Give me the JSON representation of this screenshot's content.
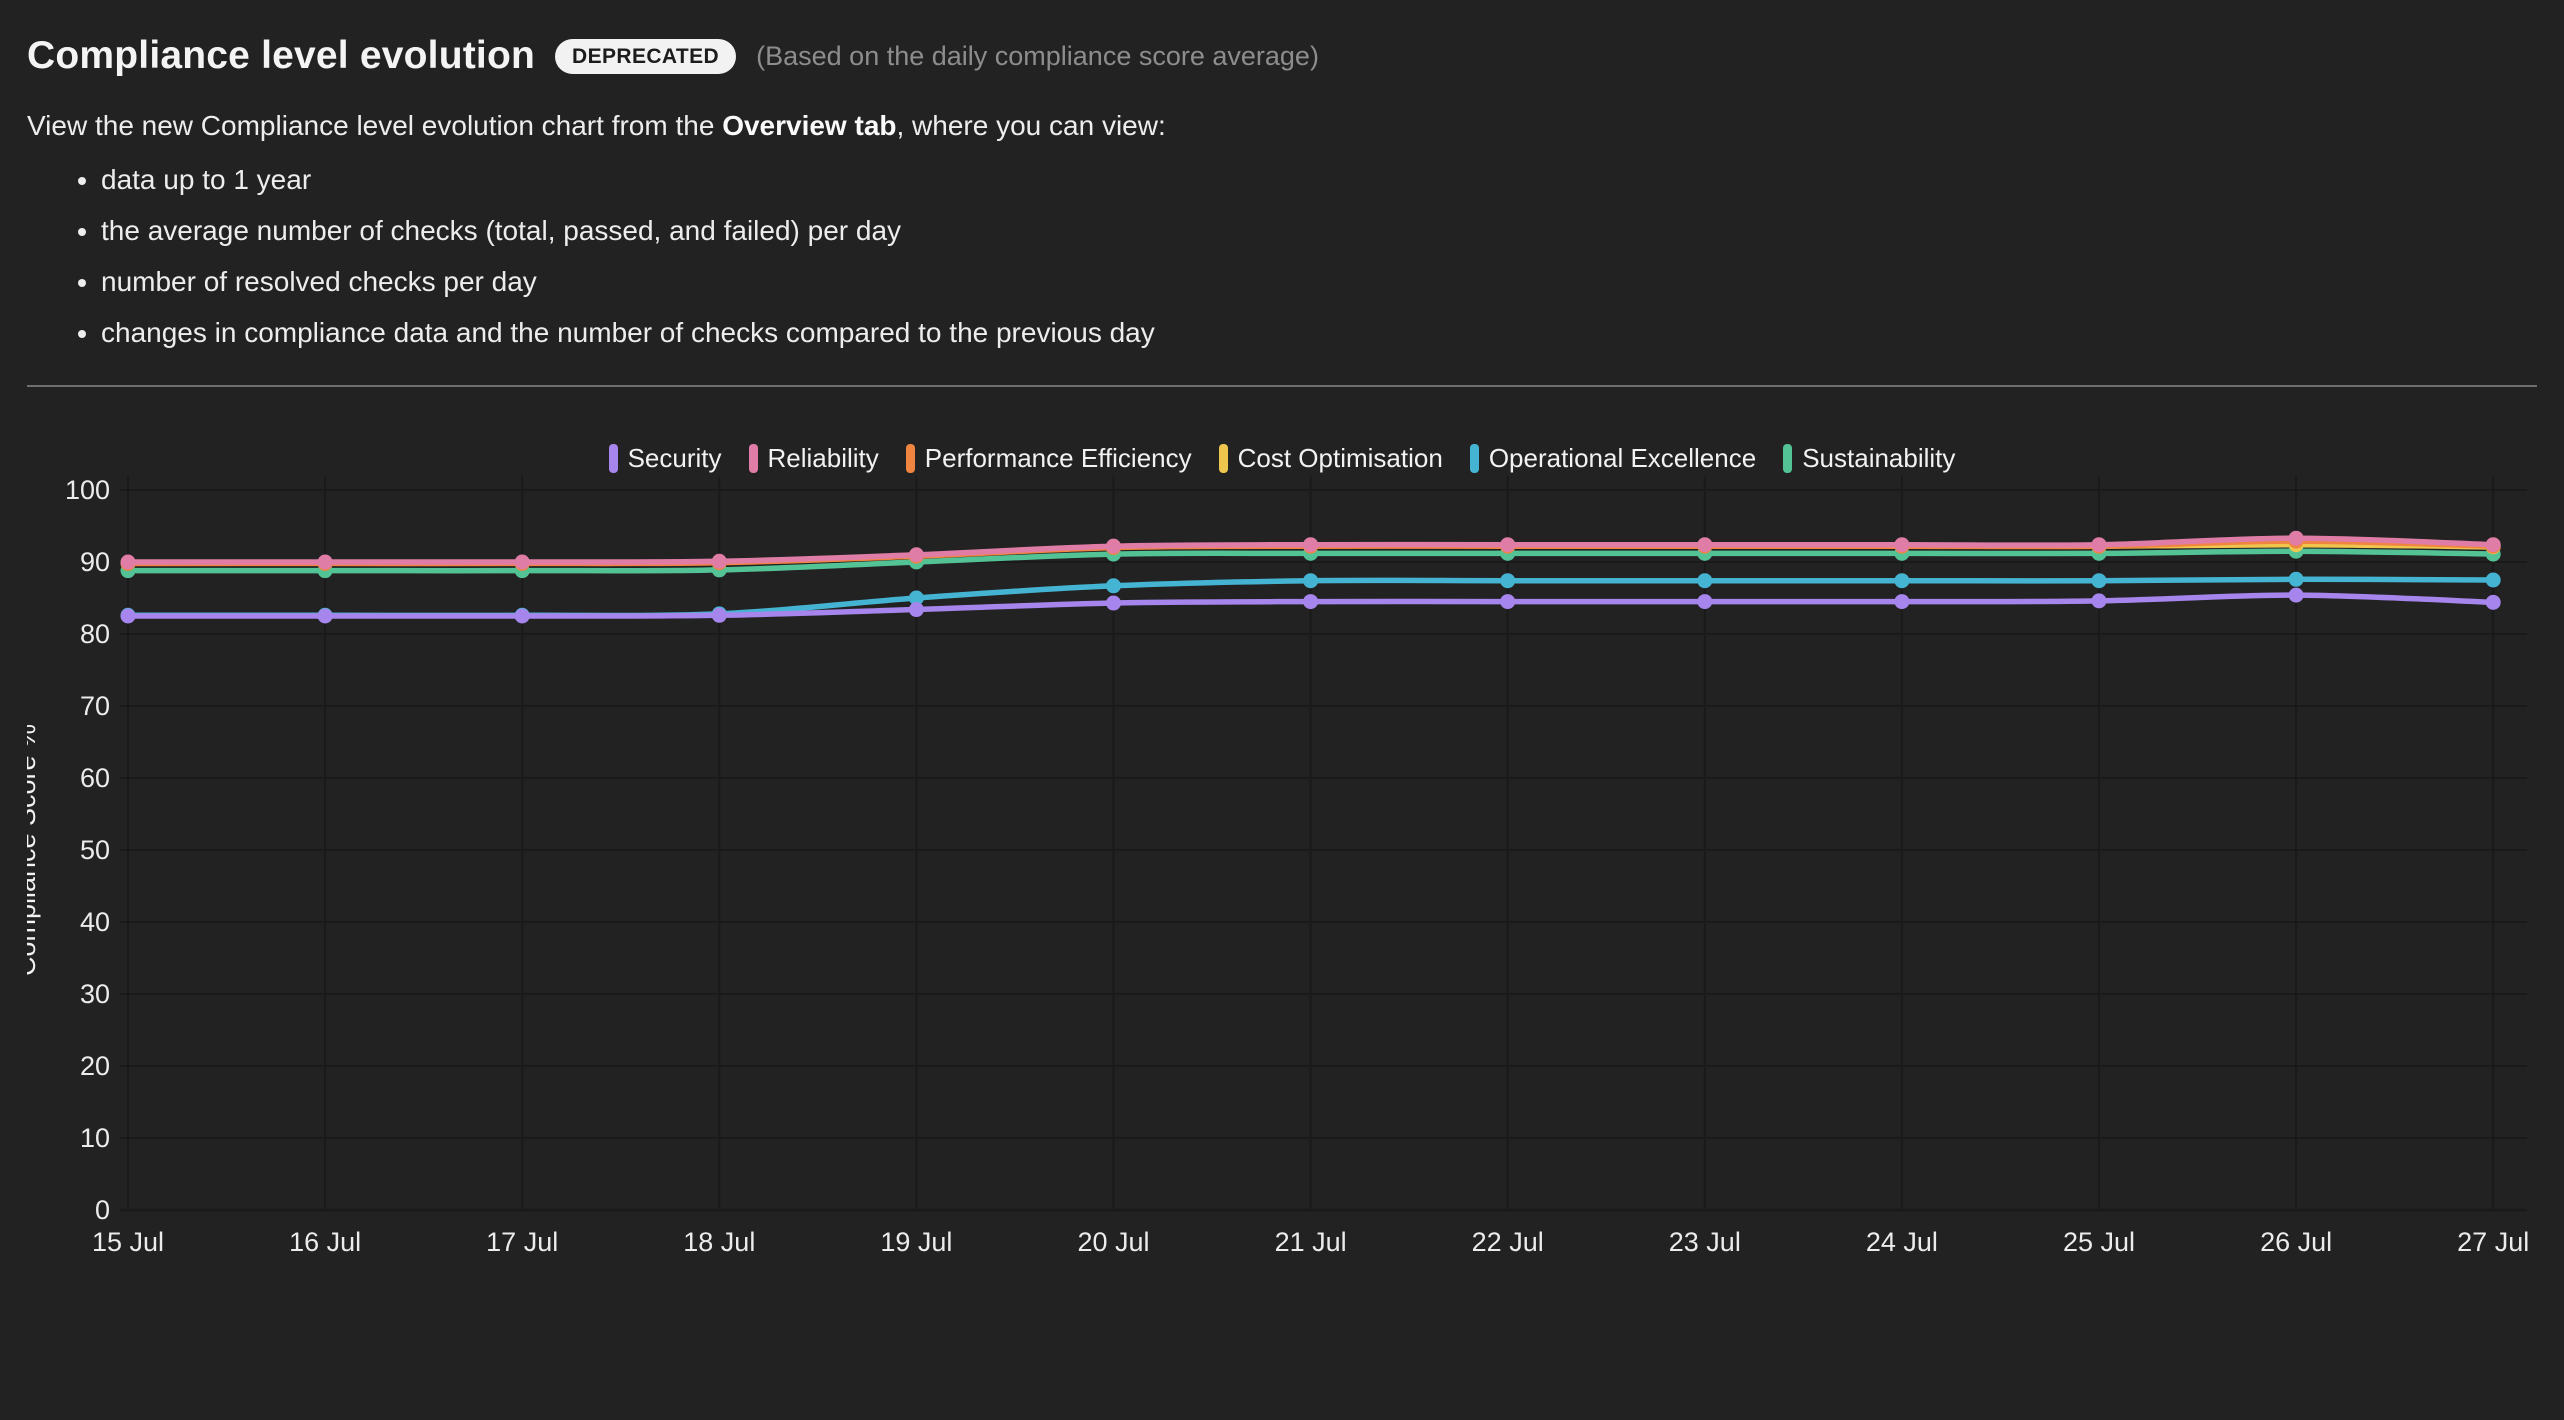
{
  "header": {
    "title": "Compliance level evolution",
    "badge": "DEPRECATED",
    "subtitle": "(Based on the daily compliance score average)",
    "intro_prefix": "View the new Compliance level evolution chart from the ",
    "intro_bold": "Overview tab",
    "intro_suffix": ", where you can view:",
    "bullets": [
      "data up to 1 year",
      "the average number of checks (total, passed, and failed) per day",
      "number of resolved checks per day",
      "changes in compliance data and the number of checks compared to the previous day"
    ]
  },
  "chart_data": {
    "type": "line",
    "title": "",
    "xlabel": "",
    "ylabel": "Compliance Score %",
    "ylim": [
      0,
      100
    ],
    "y_ticks": [
      0,
      10,
      20,
      30,
      40,
      50,
      60,
      70,
      80,
      90,
      100
    ],
    "grid": true,
    "legend_position": "top",
    "point_style": "circle",
    "categories": [
      "15 Jul",
      "16 Jul",
      "17 Jul",
      "18 Jul",
      "19 Jul",
      "20 Jul",
      "21 Jul",
      "22 Jul",
      "23 Jul",
      "24 Jul",
      "25 Jul",
      "26 Jul",
      "27 Jul"
    ],
    "series": [
      {
        "name": "Security",
        "color": "#a685ec",
        "values": [
          82.5,
          82.5,
          82.5,
          82.6,
          83.4,
          84.3,
          84.5,
          84.5,
          84.5,
          84.5,
          84.6,
          85.4,
          84.4
        ]
      },
      {
        "name": "Reliability",
        "color": "#e07da6",
        "values": [
          90.0,
          90.0,
          90.0,
          90.1,
          91.0,
          92.2,
          92.4,
          92.4,
          92.4,
          92.4,
          92.4,
          93.3,
          92.4
        ]
      },
      {
        "name": "Performance Efficiency",
        "color": "#ef8540",
        "values": [
          89.8,
          89.8,
          89.8,
          89.9,
          90.8,
          92.0,
          92.2,
          92.2,
          92.2,
          92.2,
          92.2,
          92.9,
          92.2
        ]
      },
      {
        "name": "Cost Optimisation",
        "color": "#efc64d",
        "values": [
          89.9,
          89.9,
          89.9,
          90.0,
          90.9,
          92.1,
          92.3,
          92.3,
          92.3,
          92.3,
          92.2,
          92.4,
          92.1
        ]
      },
      {
        "name": "Operational Excellence",
        "color": "#45b4d2",
        "values": [
          82.6,
          82.6,
          82.6,
          82.8,
          85.0,
          86.7,
          87.4,
          87.4,
          87.4,
          87.4,
          87.4,
          87.6,
          87.5
        ]
      },
      {
        "name": "Sustainability",
        "color": "#53c295",
        "values": [
          88.8,
          88.8,
          88.8,
          88.9,
          90.0,
          91.1,
          91.2,
          91.2,
          91.2,
          91.2,
          91.2,
          91.5,
          91.1
        ]
      }
    ],
    "colors": {
      "background": "#222223",
      "gridline": "#1a1a1b",
      "tick_text": "#ececec",
      "axis_title_text": "#f2f2f2"
    }
  }
}
